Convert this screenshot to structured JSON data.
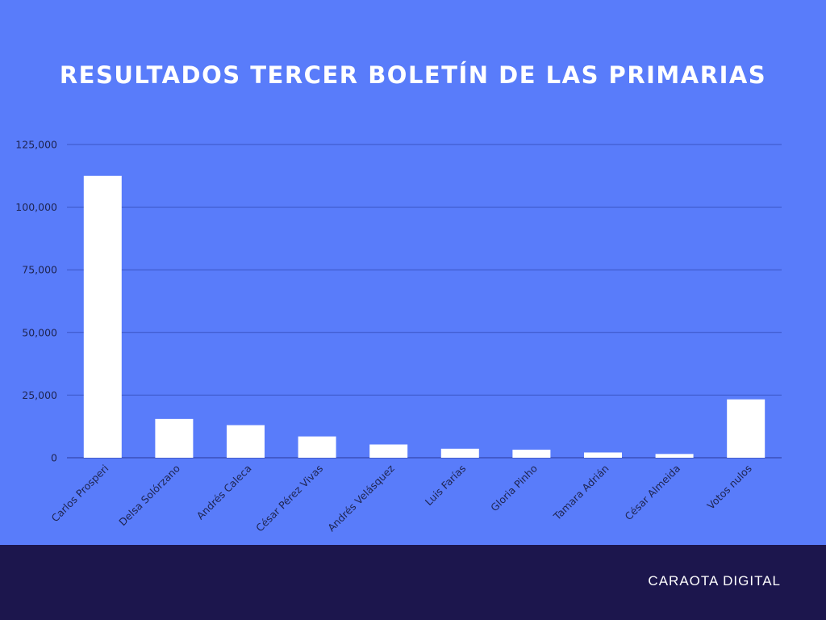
{
  "colors": {
    "background": "#597cfa",
    "footer": "#1c164d",
    "bar": "#ffffff",
    "grid": "#3a55c4",
    "axis_text": "#1e2450"
  },
  "footer": {
    "brand": "CARAOTA DIGITAL"
  },
  "chart_data": {
    "type": "bar",
    "title": "RESULTADOS TERCER BOLETÍN DE LAS PRIMARIAS",
    "categories": [
      "Carlos Prosperi",
      "Delsa Solórzano",
      "Andrés Caleca",
      "César Pérez Vivas",
      "Andrés Velásquez",
      "Luis Farías",
      "Gloria Pinho",
      "Tamara Adrián",
      "César Almeida",
      "Votos nulos"
    ],
    "values": [
      112500,
      15500,
      13000,
      8500,
      5300,
      3600,
      3200,
      2100,
      1500,
      23300
    ],
    "yticks": [
      "0",
      "25,000",
      "50,000",
      "75,000",
      "100,000",
      "125,000"
    ],
    "ylim": [
      0,
      125000
    ],
    "xlabel": "",
    "ylabel": "",
    "grid": true,
    "legend": "none"
  }
}
